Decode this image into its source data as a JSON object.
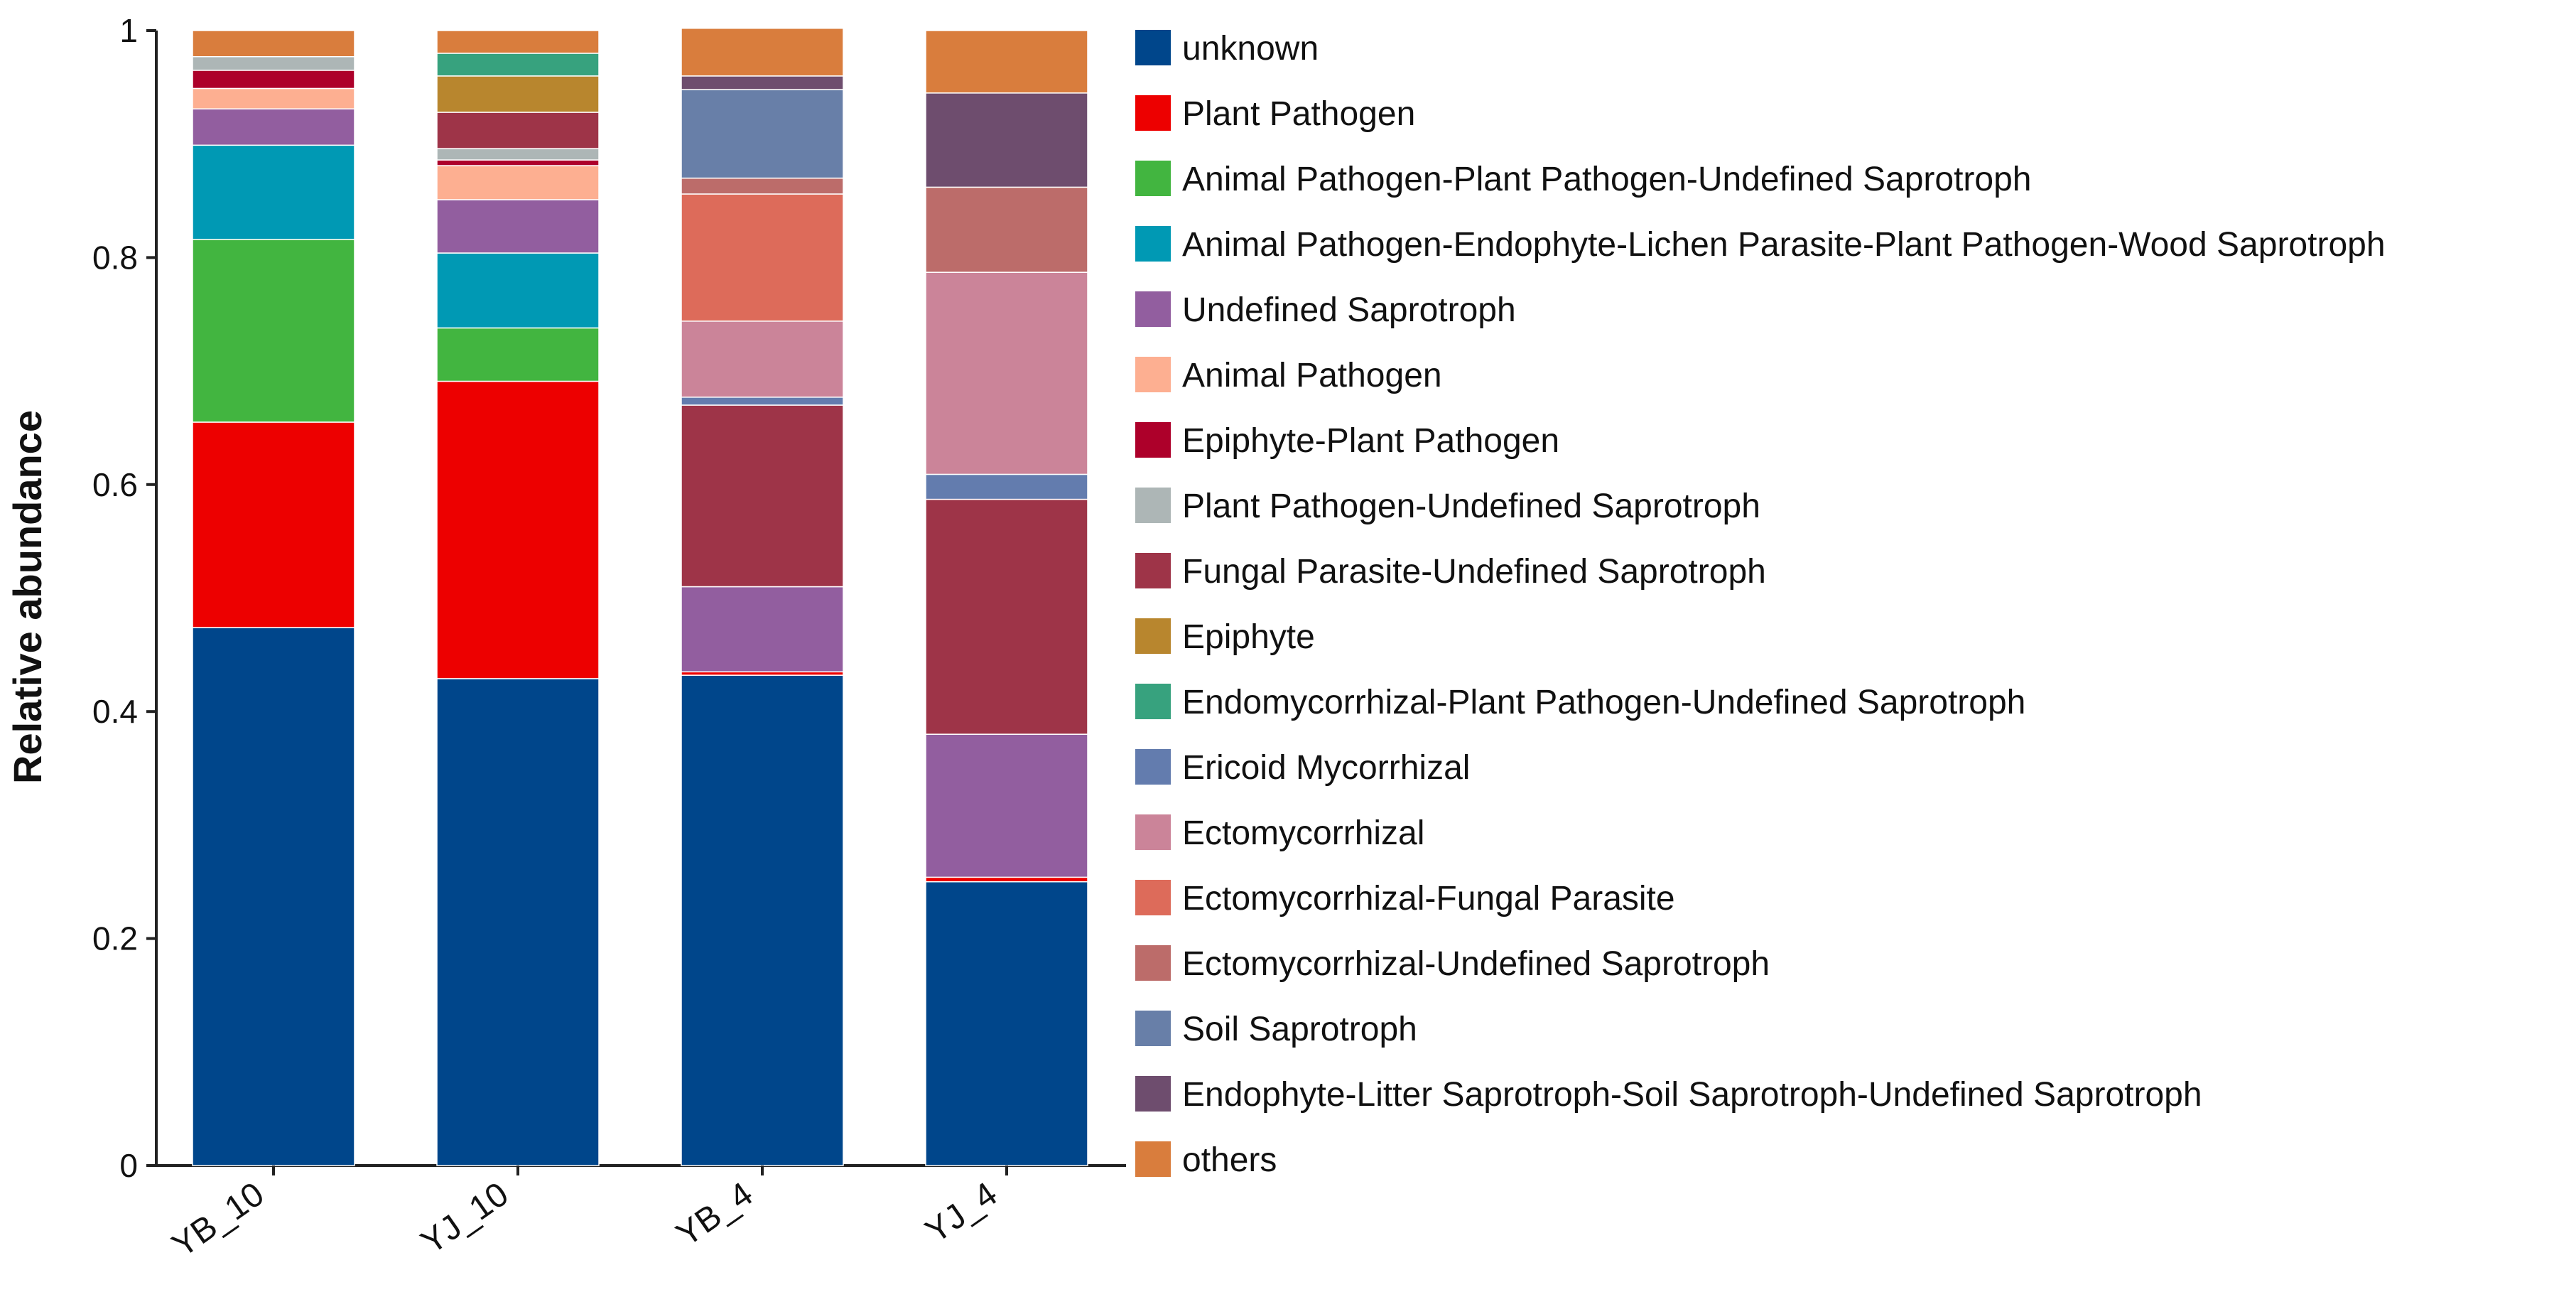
{
  "chart_data": {
    "type": "bar",
    "stacked": true,
    "title": "",
    "xlabel": "",
    "ylabel": "Relative abundance",
    "ylim": [
      0,
      1
    ],
    "yticks": [
      0,
      0.2,
      0.4,
      0.6,
      0.8,
      1
    ],
    "ytick_labels": [
      "0",
      "0.2",
      "0.4",
      "0.6",
      "0.8",
      "1"
    ],
    "categories": [
      "YB_10",
      "YJ_10",
      "YB_4",
      "YJ_4"
    ],
    "legend_position": "right",
    "series": [
      {
        "name": "unknown",
        "color": "#00468B",
        "values": [
          0.474,
          0.429,
          0.432,
          0.25
        ]
      },
      {
        "name": "Plant Pathogen",
        "color": "#ED0000",
        "values": [
          0.181,
          0.262,
          0.003,
          0.004
        ]
      },
      {
        "name": "Animal Pathogen-Plant Pathogen-Undefined Saprotroph",
        "color": "#42B540",
        "values": [
          0.161,
          0.047,
          0.0,
          0.0
        ]
      },
      {
        "name": "Animal Pathogen-Endophyte-Lichen Parasite-Plant Pathogen-Wood Saprotroph",
        "color": "#0099B4",
        "values": [
          0.083,
          0.066,
          0.0,
          0.0
        ]
      },
      {
        "name": "Undefined Saprotroph",
        "color": "#925E9F",
        "values": [
          0.032,
          0.047,
          0.075,
          0.126
        ]
      },
      {
        "name": "Animal Pathogen",
        "color": "#FDAF91",
        "values": [
          0.018,
          0.03,
          0.0,
          0.0
        ]
      },
      {
        "name": "Epiphyte-Plant Pathogen",
        "color": "#AD002A",
        "values": [
          0.016,
          0.005,
          0.0,
          0.0
        ]
      },
      {
        "name": "Plant Pathogen-Undefined Saprotroph",
        "color": "#ADB6B6",
        "values": [
          0.012,
          0.01,
          0.0,
          0.0
        ]
      },
      {
        "name": "Fungal Parasite-Undefined Saprotroph",
        "color": "#9E3448",
        "values": [
          0.0,
          0.032,
          0.16,
          0.207
        ]
      },
      {
        "name": "Epiphyte",
        "color": "#B8862E",
        "values": [
          0.0,
          0.032,
          0.0,
          0.0
        ]
      },
      {
        "name": "Endomycorrhizal-Plant Pathogen-Undefined Saprotroph",
        "color": "#37A27E",
        "values": [
          0.0,
          0.02,
          0.0,
          0.0
        ]
      },
      {
        "name": "Ericoid Mycorrhizal",
        "color": "#637CAE",
        "values": [
          0.0,
          0.0,
          0.007,
          0.022
        ]
      },
      {
        "name": "Ectomycorrhizal",
        "color": "#CB8499",
        "values": [
          0.0,
          0.0,
          0.067,
          0.178
        ]
      },
      {
        "name": "Ectomycorrhizal-Fungal Parasite",
        "color": "#DD6B5A",
        "values": [
          0.0,
          0.0,
          0.112,
          0.0
        ]
      },
      {
        "name": "Ectomycorrhizal-Undefined Saprotroph",
        "color": "#BC6C6A",
        "values": [
          0.0,
          0.0,
          0.014,
          0.075
        ]
      },
      {
        "name": "Soil Saprotroph",
        "color": "#687FA8",
        "values": [
          0.0,
          0.0,
          0.078,
          0.0
        ]
      },
      {
        "name": "Endophyte-Litter Saprotroph-Soil Saprotroph-Undefined Saprotroph",
        "color": "#6E4D6E",
        "values": [
          0.0,
          0.0,
          0.012,
          0.083
        ]
      },
      {
        "name": "others",
        "color": "#D97D3D",
        "values": [
          0.023,
          0.02,
          0.042,
          0.055
        ]
      }
    ]
  }
}
